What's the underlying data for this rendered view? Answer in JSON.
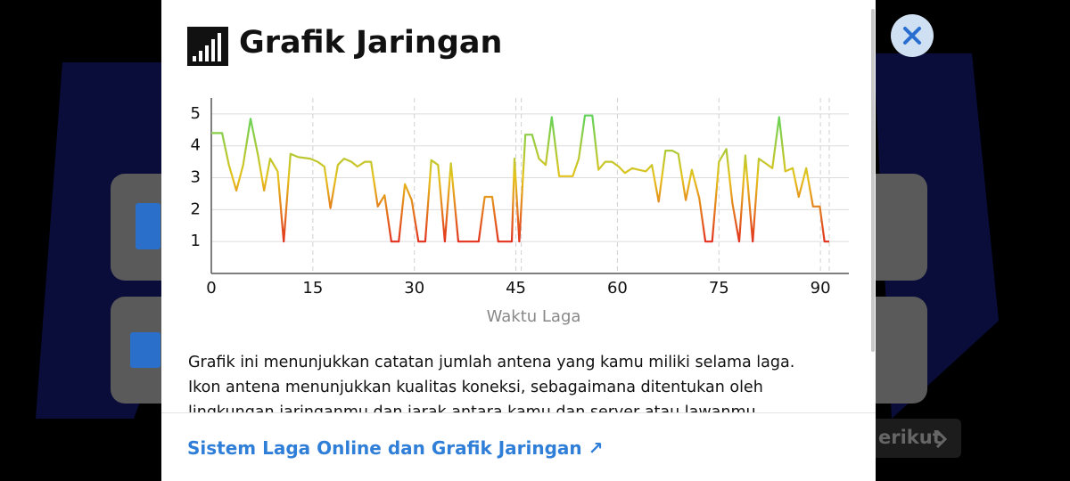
{
  "modal": {
    "title": "Grafik Jaringan",
    "description": "Grafik ini menunjukkan catatan jumlah antena yang kamu miliki selama laga. Ikon antena menunjukkan kualitas koneksi, sebagaimana ditentukan oleh lingkungan jaringanmu dan jarak antara kamu dan server atau lawanmu.",
    "link": "Sistem Laga Online dan Grafik Jaringan ↗"
  },
  "background": {
    "next_button": "erikut"
  },
  "chart_data": {
    "type": "line",
    "xlabel": "Waktu Laga",
    "x": [
      0,
      1.6,
      2.6,
      3.7,
      4.7,
      5.8,
      6.9,
      7.8,
      8.7,
      9.8,
      10.7,
      11.7,
      12.8,
      14.6,
      15.7,
      16.7,
      17.6,
      18.7,
      19.6,
      20.7,
      21.6,
      22.7,
      23.6,
      24.6,
      25.6,
      26.6,
      27.7,
      28.6,
      29.6,
      30.6,
      31.6,
      32.5,
      33.5,
      34.5,
      35.4,
      36.5,
      37.5,
      39.5,
      40.4,
      41.5,
      42.4,
      43.5,
      44.4,
      44.8,
      45.5,
      46.4,
      47.4,
      48.4,
      49.4,
      50.3,
      51.4,
      52.3,
      53.4,
      54.3,
      55.2,
      56.3,
      57.2,
      58.2,
      59.2,
      60.2,
      61.1,
      62.2,
      63.1,
      64.2,
      65.1,
      66.1,
      67.1,
      68.1,
      69.0,
      70.1,
      71.0,
      72.1,
      73.0,
      74.0,
      75.0,
      76.1,
      77.0,
      78.0,
      78.9,
      80.0,
      80.9,
      81.9,
      82.9,
      83.9,
      84.8,
      85.9,
      86.8,
      87.9,
      88.9,
      89.9,
      90.6,
      91.3
    ],
    "values": [
      4.4,
      4.4,
      3.4,
      2.6,
      3.4,
      4.85,
      3.7,
      2.6,
      3.6,
      3.2,
      1,
      3.75,
      3.65,
      3.6,
      3.5,
      3.35,
      2.05,
      3.4,
      3.6,
      3.5,
      3.35,
      3.5,
      3.5,
      2.1,
      2.45,
      1,
      1,
      2.8,
      2.3,
      1,
      1,
      3.55,
      3.4,
      1,
      3.45,
      1,
      1,
      1,
      2.4,
      2.4,
      1,
      1,
      1,
      3.6,
      1,
      4.35,
      4.35,
      3.6,
      3.4,
      4.9,
      3.05,
      3.05,
      3.05,
      3.6,
      4.95,
      4.95,
      3.25,
      3.5,
      3.5,
      3.35,
      3.15,
      3.3,
      3.25,
      3.2,
      3.4,
      2.25,
      3.85,
      3.85,
      3.75,
      2.3,
      3.25,
      2.35,
      1,
      1,
      3.5,
      3.9,
      2.2,
      1,
      3.7,
      1,
      3.6,
      3.45,
      3.3,
      4.9,
      3.2,
      3.3,
      2.4,
      3.3,
      2.1,
      2.1,
      1,
      1
    ],
    "colors": [
      "#e2321f",
      "#e6c21c",
      "#5fd45c"
    ],
    "xlim": [
      0,
      94.2
    ],
    "ylim": [
      0,
      5.5
    ],
    "xticks": [
      0,
      15,
      30,
      45,
      60,
      75,
      90
    ],
    "yticks": [
      1,
      2,
      3,
      4,
      5
    ],
    "x_markers": [
      45.8,
      91.3
    ],
    "grid": true
  }
}
